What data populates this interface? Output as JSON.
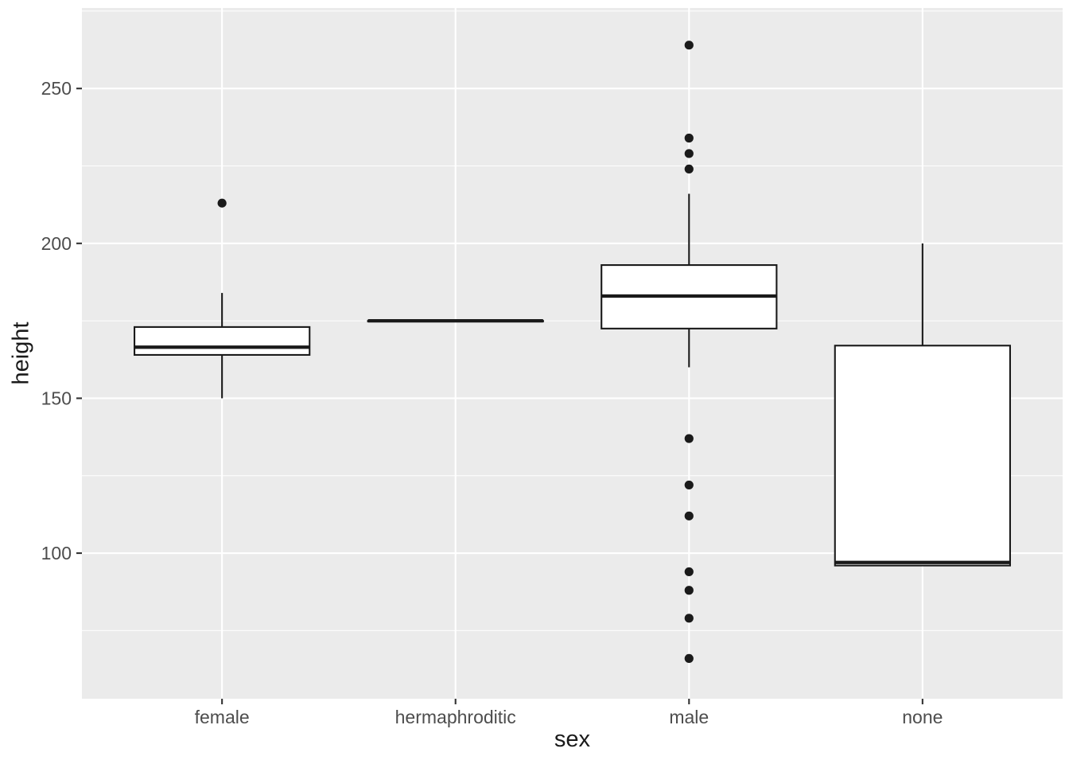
{
  "figure": {
    "background": "#FFFFFF",
    "panel_background": "#EBEBEB",
    "grid_major_color": "#FFFFFF",
    "grid_minor_color": "#FFFFFF",
    "box_fill": "#FFFFFF",
    "box_stroke": "#1A1A1A",
    "outlier_color": "#1A1A1A",
    "axis_text_color": "#4D4D4D",
    "axis_title_color": "#1A1A1A",
    "tick_mark_color": "#333333"
  },
  "chart_data": {
    "type": "boxplot",
    "xlabel": "sex",
    "ylabel": "height",
    "categories": [
      "female",
      "hermaphroditic",
      "male",
      "none"
    ],
    "y_ticks": [
      100,
      150,
      200,
      250
    ],
    "y_minor_ticks": [
      75,
      125,
      175,
      225,
      275
    ],
    "ylim": [
      53,
      276
    ],
    "grid": true,
    "legend": "none",
    "series": [
      {
        "category": "female",
        "whisker_low": 150,
        "q1": 164,
        "median": 166.5,
        "q3": 173,
        "whisker_high": 184,
        "outliers": [
          213
        ]
      },
      {
        "category": "hermaphroditic",
        "whisker_low": 175,
        "q1": 175,
        "median": 175,
        "q3": 175,
        "whisker_high": 175,
        "outliers": []
      },
      {
        "category": "male",
        "whisker_low": 160,
        "q1": 172.5,
        "median": 183,
        "q3": 193,
        "whisker_high": 216,
        "outliers": [
          264,
          234,
          229,
          224,
          137,
          122,
          112,
          94,
          88,
          79,
          66
        ]
      },
      {
        "category": "none",
        "whisker_low": 96,
        "q1": 96,
        "median": 97,
        "q3": 167,
        "whisker_high": 200,
        "outliers": []
      }
    ]
  }
}
